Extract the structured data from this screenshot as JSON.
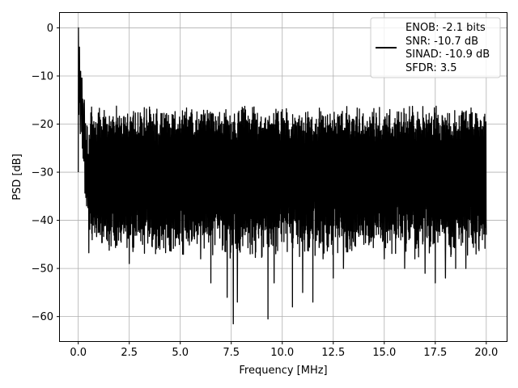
{
  "chart_data": {
    "type": "line",
    "title": "",
    "xlabel": "Frequency [MHz]",
    "ylabel": "PSD [dB]",
    "xlim": [
      -0.9,
      21.0
    ],
    "ylim": [
      -65.1,
      3.1
    ],
    "grid": true,
    "x_ticks": [
      0.0,
      2.5,
      5.0,
      7.5,
      10.0,
      12.5,
      15.0,
      17.5,
      20.0
    ],
    "x_tick_labels": [
      "0.0",
      "2.5",
      "5.0",
      "7.5",
      "10.0",
      "12.5",
      "15.0",
      "17.5",
      "20.0"
    ],
    "y_ticks": [
      0,
      -10,
      -20,
      -30,
      -40,
      -50,
      -60
    ],
    "y_tick_labels": [
      "0",
      "−10",
      "−20",
      "−30",
      "−40",
      "−50",
      "−60"
    ],
    "legend": {
      "placement": "top-right",
      "entries": [
        "ENOB: -2.1 bits",
        "SNR: -10.7 dB",
        "SINAD: -10.9 dB",
        "SFDR: 3.5"
      ]
    },
    "series": [
      {
        "color": "#000000",
        "x_range": [
          0.0,
          20.0
        ],
        "approx_points": [
          [
            0.0,
            -30
          ],
          [
            0.01,
            0.0
          ],
          [
            0.03,
            -18
          ],
          [
            0.06,
            -4
          ],
          [
            0.1,
            -22
          ],
          [
            0.15,
            -12
          ],
          [
            0.2,
            -25
          ],
          [
            0.3,
            -15
          ],
          [
            0.45,
            -35
          ],
          [
            0.6,
            -20
          ],
          [
            0.8,
            -40
          ],
          [
            1.0,
            -22
          ],
          [
            1.5,
            -45
          ],
          [
            2.0,
            -25
          ],
          [
            2.5,
            -49
          ],
          [
            3.0,
            -22
          ],
          [
            4.0,
            -46
          ],
          [
            5.0,
            -20
          ],
          [
            6.0,
            -48
          ],
          [
            6.5,
            -53
          ],
          [
            7.0,
            -22
          ],
          [
            7.3,
            -56
          ],
          [
            7.6,
            -61.5
          ],
          [
            7.8,
            -57
          ],
          [
            8.5,
            -45
          ],
          [
            9.3,
            -60.5
          ],
          [
            9.6,
            -53
          ],
          [
            10.0,
            -17
          ],
          [
            10.5,
            -58
          ],
          [
            11.0,
            -55
          ],
          [
            11.5,
            -57
          ],
          [
            12.0,
            -48
          ],
          [
            12.5,
            -52
          ],
          [
            13.0,
            -50
          ],
          [
            13.5,
            -21
          ],
          [
            14.0,
            -45
          ],
          [
            15.0,
            -48
          ],
          [
            16.0,
            -50
          ],
          [
            16.5,
            -48
          ],
          [
            17.0,
            -51
          ],
          [
            17.5,
            -53
          ],
          [
            18.0,
            -52
          ],
          [
            18.5,
            -50
          ],
          [
            19.0,
            -50
          ],
          [
            19.5,
            -47
          ],
          [
            20.0,
            -43
          ]
        ],
        "noise_band_db": [
          -20,
          -40
        ],
        "typical_max_db": -18,
        "typical_min_db": -42
      }
    ]
  }
}
